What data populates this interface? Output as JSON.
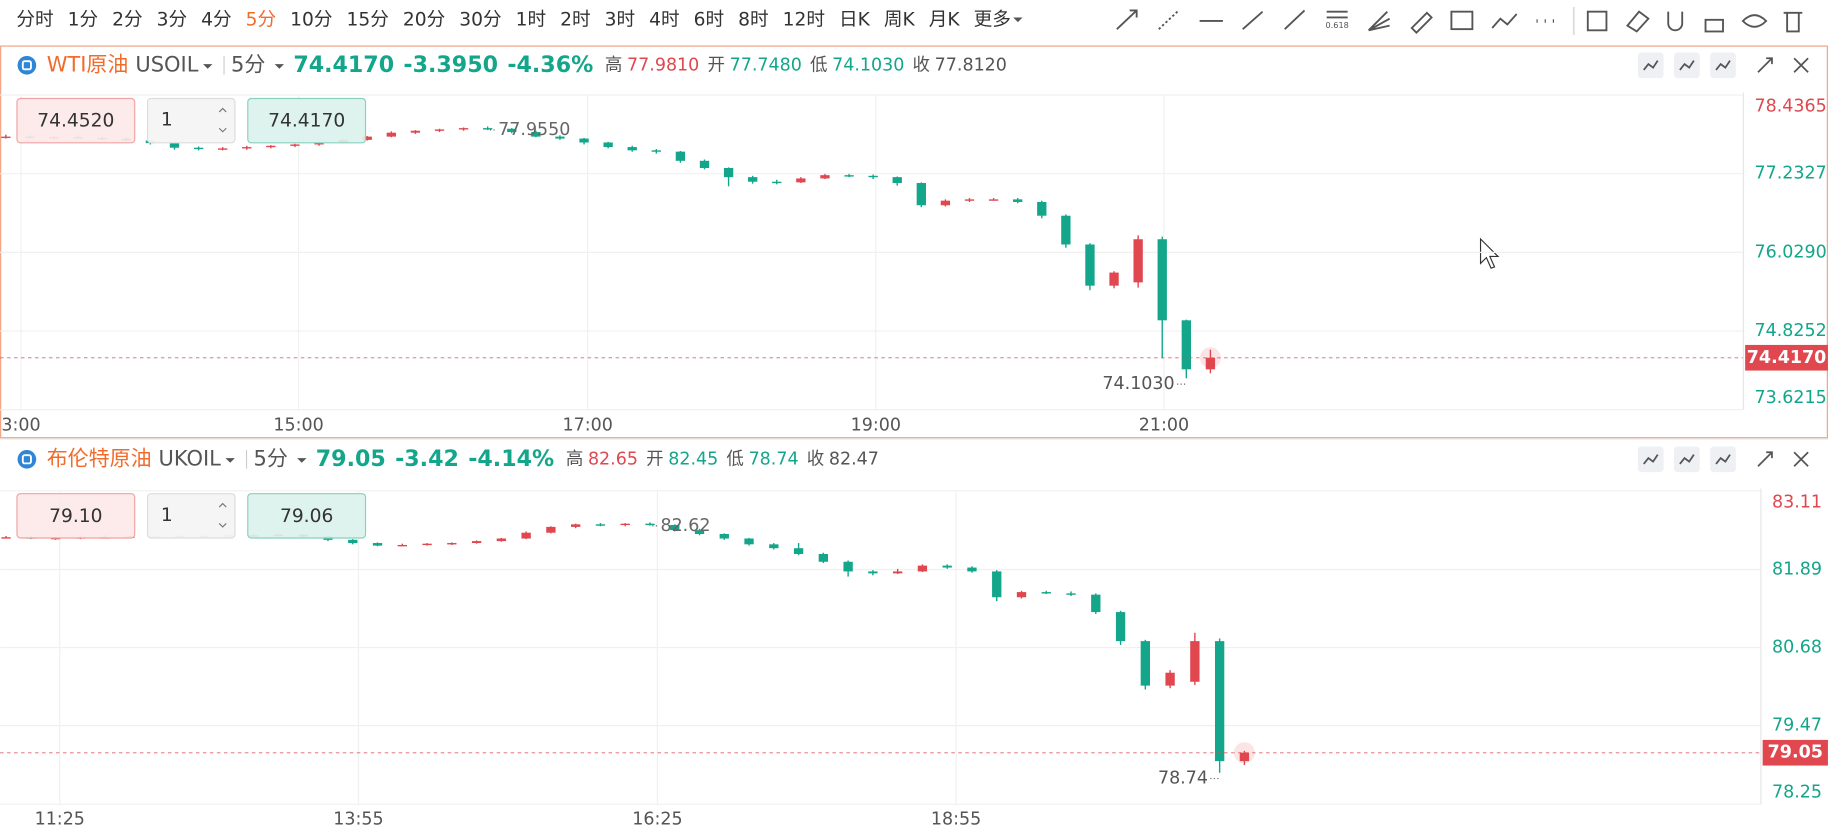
{
  "toolbar": {
    "intervals": [
      "分时",
      "1分",
      "2分",
      "3分",
      "4分",
      "5分",
      "10分",
      "15分",
      "20分",
      "30分",
      "1时",
      "2时",
      "3时",
      "4时",
      "6时",
      "8时",
      "12时",
      "日K",
      "周K",
      "月K",
      "更多"
    ],
    "active_interval": 5,
    "fib_icon_label": "0.618"
  },
  "panels": [
    {
      "selected": true,
      "header": {
        "name": "WTI原油",
        "symbol": "USOIL",
        "interval": "5分",
        "price": "74.4170",
        "change": "-3.3950",
        "change_pct": "-4.36%",
        "high_label": "高",
        "high": "77.9810",
        "open_label": "开",
        "open": "77.7480",
        "low_label": "低",
        "low": "74.1030",
        "close_label": "收",
        "close": "77.8120"
      },
      "order": {
        "sell": "74.4520",
        "quantity": "1",
        "buy": "74.4170"
      },
      "chart_data": {
        "type": "candlestick",
        "up_color": "#e0474f",
        "down_color": "#13a68a",
        "grid": true,
        "prev_close": 77.812,
        "xlim": [
          -0.24,
          72.1
        ],
        "xticks": [
          {
            "value": 0.63,
            "label": "3:00"
          },
          {
            "value": 12.15,
            "label": "15:00"
          },
          {
            "value": 24.15,
            "label": "17:00"
          },
          {
            "value": 36.11,
            "label": "19:00"
          },
          {
            "value": 48.07,
            "label": "21:00"
          }
        ],
        "ylim": [
          73.6215,
          78.4365
        ],
        "yticks": [
          73.6215,
          74.8252,
          {
            "value": 76.029,
            "label": "76.0290"
          },
          77.2327,
          78.4365
        ],
        "last": {
          "value": 74.417,
          "label": "74.4170"
        },
        "high_mark": {
          "value": 77.955,
          "label": "77.9550"
        },
        "low_mark": {
          "value": 74.103,
          "label": "74.1030"
        },
        "candles": [
          [
            77.8,
            77.83,
            77.77,
            77.8
          ],
          [
            77.8,
            77.82,
            77.77,
            77.79
          ],
          [
            77.79,
            77.81,
            77.76,
            77.79
          ],
          [
            77.79,
            77.82,
            77.77,
            77.78
          ],
          [
            77.78,
            77.8,
            77.75,
            77.77
          ],
          [
            77.77,
            77.79,
            77.73,
            77.74
          ],
          [
            77.74,
            77.75,
            77.68,
            77.7
          ],
          [
            77.7,
            77.72,
            77.6,
            77.63
          ],
          [
            77.63,
            77.65,
            77.59,
            77.61
          ],
          [
            77.61,
            77.64,
            77.59,
            77.62
          ],
          [
            77.62,
            77.66,
            77.6,
            77.64
          ],
          [
            77.64,
            77.67,
            77.62,
            77.66
          ],
          [
            77.66,
            77.69,
            77.64,
            77.68
          ],
          [
            77.68,
            77.72,
            77.66,
            77.71
          ],
          [
            77.71,
            77.76,
            77.7,
            77.75
          ],
          [
            77.75,
            77.81,
            77.74,
            77.8
          ],
          [
            77.8,
            77.88,
            77.79,
            77.86
          ],
          [
            77.86,
            77.9,
            77.84,
            77.89
          ],
          [
            77.89,
            77.92,
            77.87,
            77.91
          ],
          [
            77.91,
            77.94,
            77.89,
            77.93
          ],
          [
            77.93,
            77.955,
            77.9,
            77.92
          ],
          [
            77.92,
            77.93,
            77.85,
            77.87
          ],
          [
            77.87,
            77.89,
            77.79,
            77.8
          ],
          [
            77.8,
            77.82,
            77.75,
            77.77
          ],
          [
            77.77,
            77.78,
            77.68,
            77.71
          ],
          [
            77.71,
            77.72,
            77.62,
            77.64
          ],
          [
            77.64,
            77.66,
            77.57,
            77.59
          ],
          [
            77.59,
            77.61,
            77.54,
            77.57
          ],
          [
            77.57,
            77.58,
            77.4,
            77.43
          ],
          [
            77.43,
            77.45,
            77.3,
            77.32
          ],
          [
            77.32,
            77.33,
            77.04,
            77.18
          ],
          [
            77.18,
            77.2,
            77.08,
            77.11
          ],
          [
            77.11,
            77.14,
            77.07,
            77.1
          ],
          [
            77.1,
            77.18,
            77.09,
            77.16
          ],
          [
            77.16,
            77.23,
            77.15,
            77.21
          ],
          [
            77.21,
            77.23,
            77.18,
            77.2
          ],
          [
            77.2,
            77.22,
            77.15,
            77.18
          ],
          [
            77.18,
            77.19,
            77.05,
            77.09
          ],
          [
            77.09,
            77.1,
            76.72,
            76.75
          ],
          [
            76.75,
            76.84,
            76.73,
            76.82
          ],
          [
            76.82,
            76.86,
            76.8,
            76.84
          ],
          [
            76.84,
            76.86,
            76.82,
            76.84
          ],
          [
            76.84,
            76.86,
            76.78,
            76.8
          ],
          [
            76.8,
            76.82,
            76.55,
            76.59
          ],
          [
            76.59,
            76.61,
            76.1,
            76.15
          ],
          [
            76.15,
            76.17,
            75.45,
            75.52
          ],
          [
            75.52,
            75.74,
            75.48,
            75.72
          ],
          [
            75.57,
            76.29,
            75.49,
            76.23
          ],
          [
            76.23,
            76.27,
            74.41,
            74.99
          ],
          [
            74.99,
            75.0,
            74.103,
            74.24
          ],
          [
            74.24,
            74.54,
            74.18,
            74.417
          ]
        ]
      }
    },
    {
      "selected": false,
      "header": {
        "name": "布伦特原油",
        "symbol": "UKOIL",
        "interval": "5分",
        "price": "79.05",
        "change": "-3.42",
        "change_pct": "-4.14%",
        "high_label": "高",
        "high": "82.65",
        "open_label": "开",
        "open": "82.45",
        "low_label": "低",
        "low": "78.74",
        "close_label": "收",
        "close": "82.47"
      },
      "order": {
        "sell": "79.10",
        "quantity": "1",
        "buy": "79.06"
      },
      "chart_data": {
        "type": "candlestick",
        "up_color": "#e0474f",
        "down_color": "#13a68a",
        "grid": true,
        "prev_close": 82.47,
        "xlim": [
          -0.24,
          70.83
        ],
        "xticks": [
          {
            "value": 2.17,
            "label": "11:25"
          },
          {
            "value": 14.23,
            "label": "13:55"
          },
          {
            "value": 26.3,
            "label": "16:25"
          },
          {
            "value": 38.36,
            "label": "18:55"
          }
        ],
        "ylim": [
          78.25,
          83.11
        ],
        "yticks": [
          78.25,
          79.47,
          80.68,
          81.89,
          83.11
        ],
        "last": {
          "value": 79.05,
          "label": "79.05"
        },
        "high_mark": {
          "value": 82.62,
          "label": "82.62"
        },
        "low_mark": {
          "value": 78.74,
          "label": "78.74"
        },
        "candles": [
          [
            82.39,
            82.41,
            82.37,
            82.39
          ],
          [
            82.39,
            82.41,
            82.36,
            82.38
          ],
          [
            82.38,
            82.4,
            82.35,
            82.38
          ],
          [
            82.38,
            82.41,
            82.36,
            82.39
          ],
          [
            82.39,
            82.42,
            82.37,
            82.39
          ],
          [
            82.39,
            82.41,
            82.37,
            82.4
          ],
          [
            82.4,
            82.42,
            82.38,
            82.4
          ],
          [
            82.4,
            82.43,
            82.38,
            82.41
          ],
          [
            82.41,
            82.43,
            82.39,
            82.41
          ],
          [
            82.41,
            82.44,
            82.39,
            82.42
          ],
          [
            82.42,
            82.44,
            82.4,
            82.42
          ],
          [
            82.42,
            82.45,
            82.4,
            82.43
          ],
          [
            82.43,
            82.44,
            82.38,
            82.4
          ],
          [
            82.4,
            82.41,
            82.33,
            82.35
          ],
          [
            82.35,
            82.36,
            82.28,
            82.3
          ],
          [
            82.3,
            82.31,
            82.25,
            82.26
          ],
          [
            82.26,
            82.29,
            82.25,
            82.27
          ],
          [
            82.27,
            82.3,
            82.26,
            82.29
          ],
          [
            82.29,
            82.31,
            82.27,
            82.3
          ],
          [
            82.3,
            82.34,
            82.29,
            82.33
          ],
          [
            82.33,
            82.38,
            82.32,
            82.37
          ],
          [
            82.37,
            82.48,
            82.36,
            82.46
          ],
          [
            82.46,
            82.56,
            82.45,
            82.55
          ],
          [
            82.55,
            82.6,
            82.53,
            82.59
          ],
          [
            82.59,
            82.61,
            82.56,
            82.58
          ],
          [
            82.58,
            82.61,
            82.56,
            82.6
          ],
          [
            82.6,
            82.62,
            82.57,
            82.58
          ],
          [
            82.58,
            82.59,
            82.48,
            82.5
          ],
          [
            82.5,
            82.52,
            82.42,
            82.44
          ],
          [
            82.44,
            82.45,
            82.35,
            82.37
          ],
          [
            82.37,
            82.38,
            82.26,
            82.28
          ],
          [
            82.28,
            82.3,
            82.2,
            82.22
          ],
          [
            82.22,
            82.3,
            82.11,
            82.13
          ],
          [
            82.13,
            82.15,
            81.99,
            82.01
          ],
          [
            82.01,
            82.03,
            81.78,
            81.86
          ],
          [
            81.86,
            81.88,
            81.8,
            81.83
          ],
          [
            81.83,
            81.9,
            81.82,
            81.86
          ],
          [
            81.86,
            81.97,
            81.85,
            81.95
          ],
          [
            81.95,
            81.97,
            81.9,
            81.92
          ],
          [
            81.92,
            81.94,
            81.84,
            81.86
          ],
          [
            81.86,
            81.88,
            81.4,
            81.46
          ],
          [
            81.46,
            81.56,
            81.44,
            81.54
          ],
          [
            81.54,
            81.56,
            81.51,
            81.52
          ],
          [
            81.52,
            81.55,
            81.48,
            81.5
          ],
          [
            81.5,
            81.52,
            81.2,
            81.23
          ],
          [
            81.23,
            81.25,
            80.72,
            80.78
          ],
          [
            80.78,
            80.8,
            80.03,
            80.09
          ],
          [
            80.09,
            80.33,
            80.05,
            80.29
          ],
          [
            80.15,
            80.91,
            80.1,
            80.78
          ],
          [
            80.78,
            80.82,
            78.74,
            78.92
          ],
          [
            78.92,
            79.08,
            78.86,
            79.05
          ]
        ]
      }
    }
  ]
}
